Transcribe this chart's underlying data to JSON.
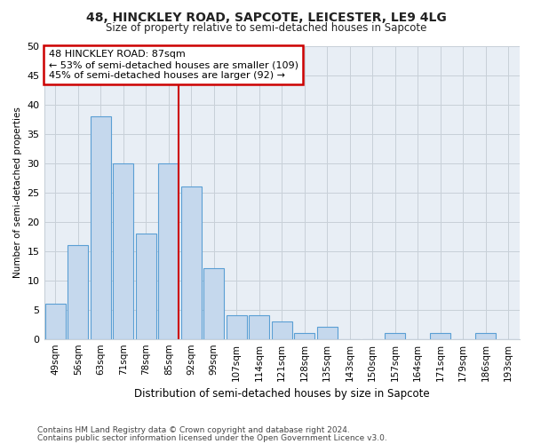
{
  "title1": "48, HINCKLEY ROAD, SAPCOTE, LEICESTER, LE9 4LG",
  "title2": "Size of property relative to semi-detached houses in Sapcote",
  "xlabel": "Distribution of semi-detached houses by size in Sapcote",
  "ylabel": "Number of semi-detached properties",
  "footer1": "Contains HM Land Registry data © Crown copyright and database right 2024.",
  "footer2": "Contains public sector information licensed under the Open Government Licence v3.0.",
  "annotation_line1": "48 HINCKLEY ROAD: 87sqm",
  "annotation_line2": "← 53% of semi-detached houses are smaller (109)",
  "annotation_line3": "45% of semi-detached houses are larger (92) →",
  "bar_color": "#c5d8ed",
  "bar_edge_color": "#5a9fd4",
  "marker_color": "#cc0000",
  "categories": [
    "49sqm",
    "56sqm",
    "63sqm",
    "71sqm",
    "78sqm",
    "85sqm",
    "92sqm",
    "99sqm",
    "107sqm",
    "114sqm",
    "121sqm",
    "128sqm",
    "135sqm",
    "143sqm",
    "150sqm",
    "157sqm",
    "164sqm",
    "171sqm",
    "179sqm",
    "186sqm",
    "193sqm"
  ],
  "values": [
    6,
    16,
    38,
    30,
    18,
    30,
    26,
    12,
    4,
    4,
    3,
    1,
    2,
    0,
    0,
    1,
    0,
    1,
    0,
    1,
    0
  ],
  "ylim": [
    0,
    50
  ],
  "yticks": [
    0,
    5,
    10,
    15,
    20,
    25,
    30,
    35,
    40,
    45,
    50
  ],
  "marker_bin_index": 5,
  "bar_width": 0.9,
  "grid_color": "#c8d0d8",
  "bg_color": "#ffffff"
}
